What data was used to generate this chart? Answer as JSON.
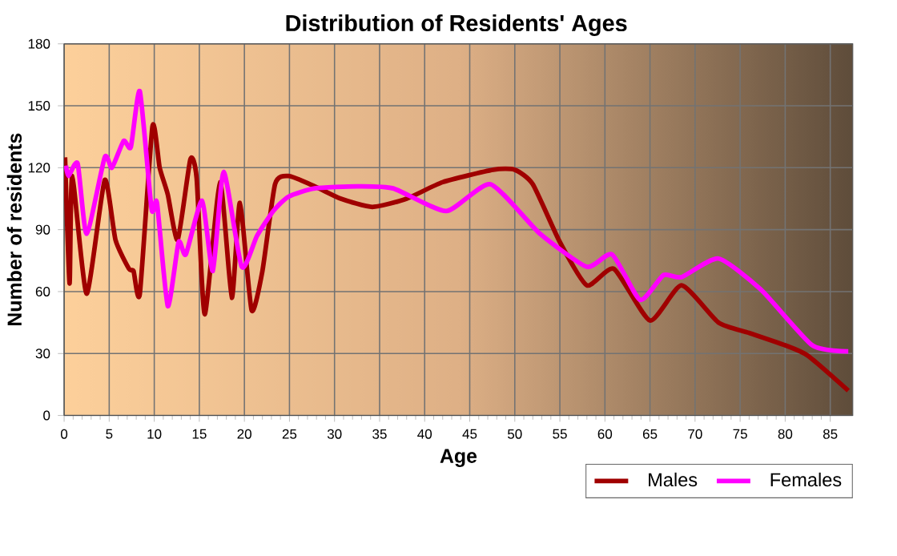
{
  "chart_data": {
    "type": "line",
    "title": "Distribution of Residents' Ages",
    "xlabel": "Age",
    "ylabel": "Number of residents",
    "xlim": [
      0,
      87.5
    ],
    "ylim": [
      0,
      180
    ],
    "xticks": [
      0,
      5,
      10,
      15,
      20,
      25,
      30,
      35,
      40,
      45,
      50,
      55,
      60,
      65,
      70,
      75,
      80,
      85
    ],
    "yticks": [
      0,
      30,
      60,
      90,
      120,
      150,
      180
    ],
    "grid": true,
    "legend": "bottom right",
    "series": [
      {
        "name": "Males",
        "color": "#a00000",
        "x": [
          0.1,
          0.6,
          0.9,
          2.5,
          4.5,
          5.7,
          7.2,
          7.7,
          8.4,
          9.8,
          10.6,
          11.5,
          12.6,
          14,
          14.7,
          15.6,
          17.3,
          18.6,
          19.5,
          20.8,
          22,
          23.4,
          24.9,
          27.8,
          30.7,
          34.2,
          38,
          42,
          47.6,
          50,
          52,
          55,
          58,
          61,
          65,
          68.5,
          72.6,
          76,
          80,
          82.5,
          87
        ],
        "values": [
          125,
          64,
          116,
          59,
          114,
          85,
          71,
          70,
          59,
          140,
          120,
          107,
          85,
          124,
          115,
          49,
          113,
          57,
          103,
          51,
          70,
          112,
          116,
          111,
          105,
          101,
          105,
          113,
          119,
          119,
          112,
          84,
          63,
          71,
          46,
          63,
          45,
          40,
          34,
          29,
          12
        ]
      },
      {
        "name": "Females",
        "color": "#ff00ff",
        "x": [
          0.2,
          0.5,
          1.5,
          2.5,
          4.5,
          5.3,
          6.6,
          7.4,
          8.4,
          9.7,
          10.3,
          11.5,
          12.7,
          13.5,
          15.3,
          16.5,
          17.7,
          19.7,
          21.4,
          23.2,
          24.9,
          27.8,
          32.5,
          36.5,
          42.4,
          47.3,
          52.8,
          58,
          60.8,
          63.9,
          66.5,
          68.5,
          72.6,
          77.3,
          83,
          87
        ],
        "values": [
          121,
          116,
          122,
          88,
          125,
          120,
          133,
          130,
          157,
          100,
          103,
          53,
          84,
          78,
          104,
          70,
          118,
          72,
          87,
          99,
          106,
          110,
          111,
          110,
          99,
          112,
          88,
          72,
          78,
          56,
          68,
          67,
          76,
          61,
          34,
          31
        ]
      }
    ]
  }
}
